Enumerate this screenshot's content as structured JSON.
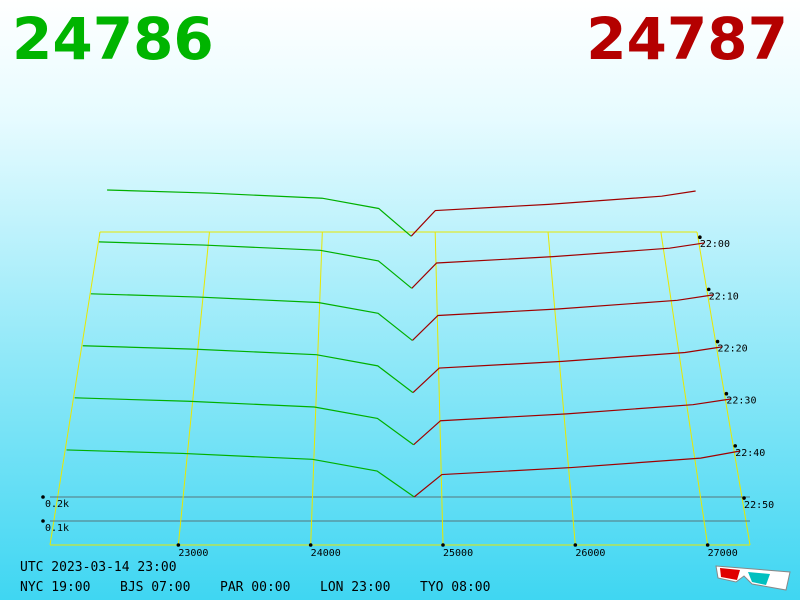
{
  "header": {
    "bid": "24786",
    "ask": "24787"
  },
  "chart_data": {
    "type": "depth3d",
    "xlim": [
      22030,
      27320
    ],
    "xticks": [
      23000,
      24000,
      25000,
      26000,
      27000
    ],
    "zticks": [
      {
        "value": 100,
        "label": "0.1k"
      },
      {
        "value": 200,
        "label": "0.2k"
      }
    ],
    "timeticks": [
      "22:00",
      "22:10",
      "22:20",
      "22:30",
      "22:40",
      "22:50"
    ],
    "bid_prices": [
      22100,
      23000,
      24000,
      24500,
      24786
    ],
    "ask_prices": [
      24787,
      25000,
      26000,
      27000,
      27300
    ],
    "bid_color": "#00b000",
    "ask_color": "#a00000",
    "slices": [
      {
        "bids": [
          230,
          215,
          190,
          140,
          5
        ],
        "asks": [
          5,
          130,
          160,
          200,
          225
        ]
      },
      {
        "bids": [
          225,
          210,
          185,
          135,
          5
        ],
        "asks": [
          5,
          125,
          155,
          195,
          220
        ]
      },
      {
        "bids": [
          220,
          205,
          180,
          130,
          5
        ],
        "asks": [
          5,
          120,
          150,
          190,
          215
        ]
      },
      {
        "bids": [
          215,
          200,
          175,
          125,
          5
        ],
        "asks": [
          5,
          115,
          145,
          185,
          210
        ]
      },
      {
        "bids": [
          210,
          195,
          170,
          120,
          5
        ],
        "asks": [
          5,
          110,
          140,
          180,
          205
        ]
      },
      {
        "bids": [
          205,
          190,
          165,
          115,
          5
        ],
        "asks": [
          5,
          100,
          130,
          170,
          200
        ]
      }
    ]
  },
  "footer": {
    "utc": "UTC 2023-03-14 23:00",
    "clocks": [
      "NYC 19:00",
      "BJS 07:00",
      "PAR 00:00",
      "LON 23:00",
      "TYO 08:00"
    ]
  }
}
